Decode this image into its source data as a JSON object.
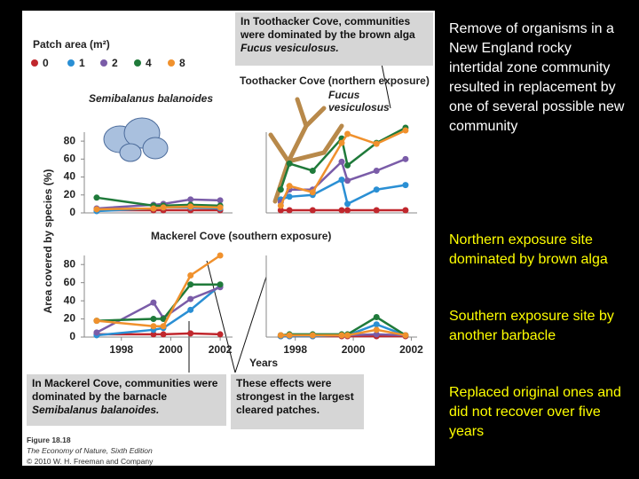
{
  "slide_text": [
    "Remove of organisms in a New England rocky intertidal zone community resulted in replacement by one of several possible new community",
    "Northern exposure site dominated by brown alga",
    "Southern exposure site by another barbacle",
    "Replaced original ones and did not recover over five years"
  ],
  "figure": {
    "legend_title": "Patch area (m²)",
    "y_axis_label": "Area covered by species (%)",
    "x_axis_label": "Years",
    "species_labels": [
      "Semibalanus balanoides",
      "Fucus vesiculosus"
    ],
    "callouts": [
      [
        "In Toothacker Cove, communities were dominated by the brown alga ",
        "Fucus vesiculosus."
      ],
      [
        "In Mackerel Cove, communities were dominated by the barnacle ",
        "Semibalanus balanoides."
      ],
      [
        "These effects were strongest in the largest cleared patches.",
        ""
      ]
    ],
    "caption": [
      "Figure 18.18",
      "The Economy of Nature, Sixth Edition",
      "© 2010 W. H. Freeman and Company"
    ]
  },
  "chart_data": [
    {
      "type": "line",
      "title": "Toothacker Cove (northern exposure)",
      "x": [
        1997,
        1999.3,
        1999.7,
        2000.8,
        2002
      ],
      "xlim": [
        1996.5,
        2002.5
      ],
      "ylim": [
        0,
        90
      ],
      "yticks": [
        0,
        20,
        40,
        60,
        80
      ],
      "series": [
        {
          "name": "0",
          "color": "#c0272d",
          "values": [
            3,
            3,
            3,
            3,
            3
          ]
        },
        {
          "name": "1",
          "color": "#2a8fd4",
          "values": [
            2,
            5,
            6,
            6,
            5
          ]
        },
        {
          "name": "2",
          "color": "#7a5ca8",
          "values": [
            5,
            9,
            10,
            15,
            14
          ]
        },
        {
          "name": "4",
          "color": "#1f7a3a",
          "values": [
            17,
            8,
            8,
            9,
            8
          ]
        },
        {
          "name": "8",
          "color": "#f0912d",
          "values": [
            4,
            5,
            6,
            7,
            6
          ]
        }
      ]
    },
    {
      "type": "line",
      "x": [
        1997.5,
        1997.8,
        1998.6,
        1999.6,
        1999.8,
        2000.8,
        2001.8
      ],
      "xlim": [
        1997,
        2002.2
      ],
      "ylim": [
        0,
        90
      ],
      "series": [
        {
          "color": "#c0272d",
          "values": [
            3,
            3,
            3,
            3,
            3,
            3,
            3
          ]
        },
        {
          "color": "#2a8fd4",
          "values": [
            15,
            18,
            20,
            37,
            10,
            26,
            31
          ]
        },
        {
          "color": "#7a5ca8",
          "values": [
            12,
            26,
            26,
            57,
            36,
            47,
            60
          ]
        },
        {
          "color": "#1f7a3a",
          "values": [
            26,
            55,
            47,
            83,
            53,
            78,
            95
          ]
        },
        {
          "color": "#f0912d",
          "values": [
            8,
            30,
            23,
            78,
            88,
            77,
            92
          ]
        }
      ]
    },
    {
      "type": "line",
      "title": "Mackerel Cove (southern exposure)",
      "x": [
        1997,
        1999.3,
        1999.7,
        2000.8,
        2002
      ],
      "xlim": [
        1996.5,
        2002.5
      ],
      "ylim": [
        0,
        90
      ],
      "yticks": [
        0,
        20,
        40,
        60,
        80
      ],
      "xticks": [
        1998,
        2000,
        2002
      ],
      "series": [
        {
          "color": "#c0272d",
          "values": [
            3,
            3,
            3,
            4,
            3
          ]
        },
        {
          "color": "#2a8fd4",
          "values": [
            2,
            8,
            10,
            30,
            57
          ]
        },
        {
          "color": "#7a5ca8",
          "values": [
            5,
            38,
            21,
            42,
            55
          ]
        },
        {
          "color": "#1f7a3a",
          "values": [
            18,
            20,
            20,
            58,
            58
          ]
        },
        {
          "color": "#f0912d",
          "values": [
            18,
            12,
            12,
            68,
            90
          ]
        }
      ]
    },
    {
      "type": "line",
      "x": [
        1997.5,
        1997.8,
        1998.6,
        1999.6,
        1999.8,
        2000.8,
        2001.8
      ],
      "xlim": [
        1997,
        2002.2
      ],
      "ylim": [
        0,
        90
      ],
      "xticks": [
        1998,
        2000,
        2002
      ],
      "series": [
        {
          "color": "#c0272d",
          "values": [
            1,
            1,
            1,
            1,
            1,
            1,
            1
          ]
        },
        {
          "color": "#2a8fd4",
          "values": [
            1,
            1,
            1,
            2,
            2,
            14,
            2
          ]
        },
        {
          "color": "#7a5ca8",
          "values": [
            2,
            2,
            2,
            2,
            2,
            3,
            2
          ]
        },
        {
          "color": "#1f7a3a",
          "values": [
            2,
            3,
            3,
            3,
            3,
            22,
            2
          ]
        },
        {
          "color": "#f0912d",
          "values": [
            2,
            2,
            2,
            2,
            2,
            8,
            2
          ]
        }
      ]
    }
  ]
}
